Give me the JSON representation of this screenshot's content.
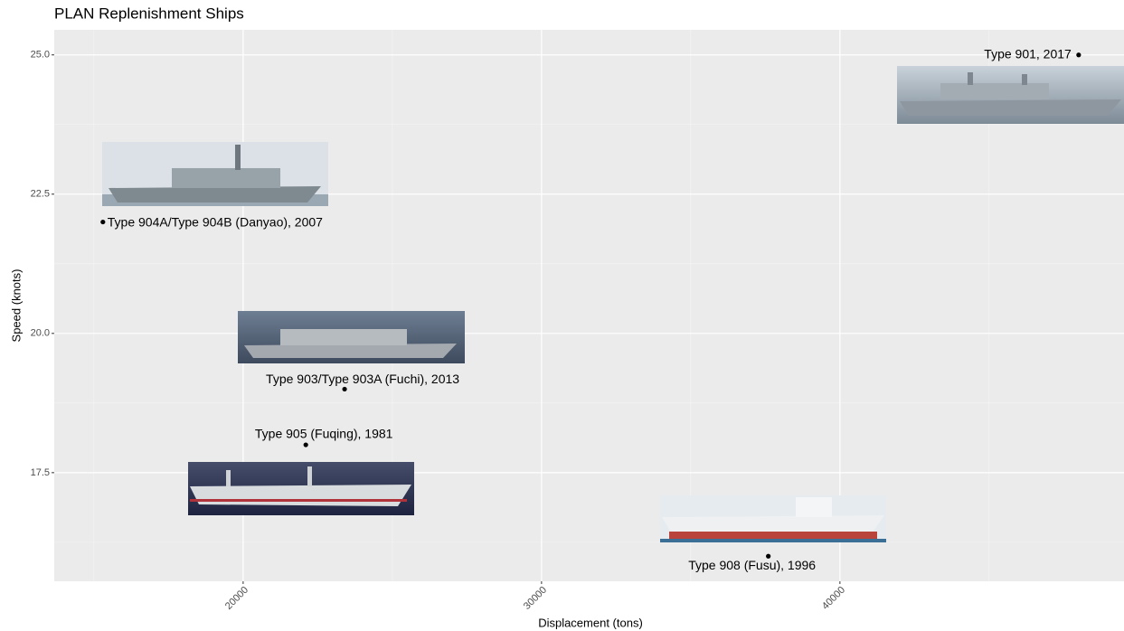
{
  "chart_data": {
    "type": "scatter",
    "title": "PLAN Replenishment Ships",
    "x_label": "Displacement (tons)",
    "y_label": "Speed (knots)",
    "labels": [
      "Type 901, 2017",
      "Type 904A/Type 904B (Danyao), 2007",
      "Type 903/Type 903A (Fuchi), 2013",
      "Type 905 (Fuqing), 1981",
      "Type 908 (Fusu), 1996"
    ],
    "x": [
      48000,
      15300,
      23400,
      22100,
      37600
    ],
    "values": [
      25,
      22,
      19,
      18,
      16
    ],
    "color": "#000000",
    "xlim": [
      13670,
      49520
    ],
    "ylim": [
      15.55,
      25.45
    ],
    "xticks": [
      20000,
      30000,
      40000
    ],
    "yticks": [
      17.5,
      {
        "value": 20,
        "label": "20.0"
      },
      22.5,
      {
        "value": 25,
        "label": "25.0"
      }
    ],
    "grid": true
  }
}
